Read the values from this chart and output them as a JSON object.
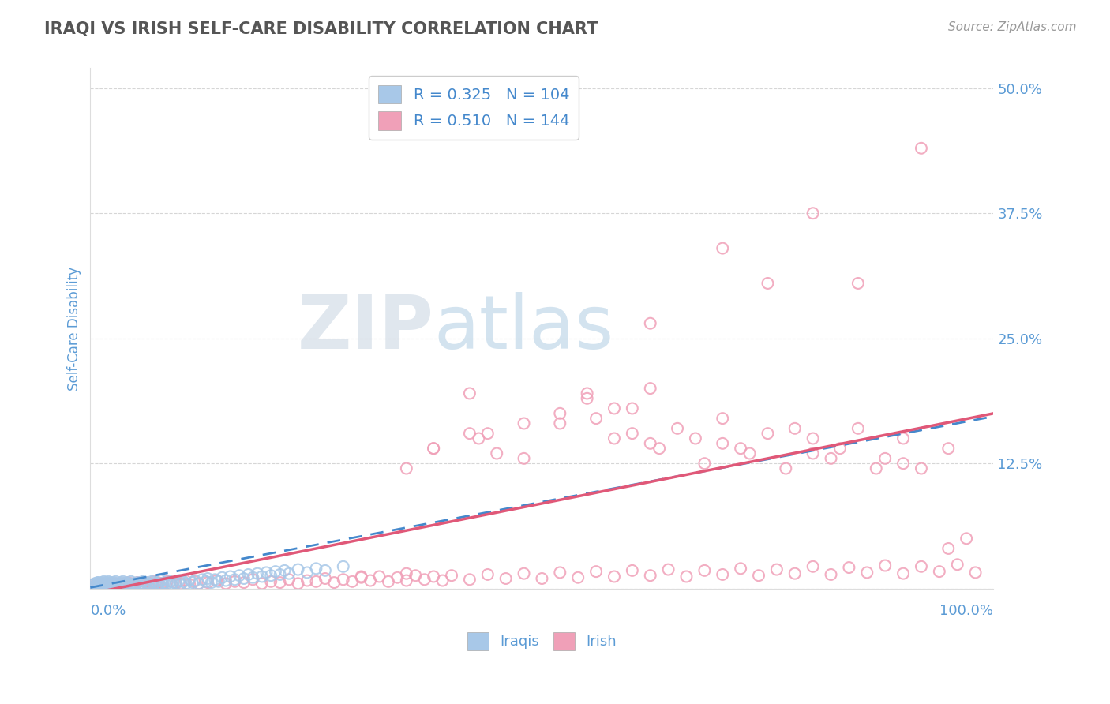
{
  "title": "IRAQI VS IRISH SELF-CARE DISABILITY CORRELATION CHART",
  "source": "Source: ZipAtlas.com",
  "ylabel": "Self-Care Disability",
  "yticks": [
    0.0,
    0.125,
    0.25,
    0.375,
    0.5
  ],
  "ytick_labels": [
    "",
    "12.5%",
    "25.0%",
    "37.5%",
    "50.0%"
  ],
  "xlim": [
    0.0,
    1.0
  ],
  "ylim": [
    0.0,
    0.52
  ],
  "iraqi_R": 0.325,
  "iraqi_N": 104,
  "irish_R": 0.51,
  "irish_N": 144,
  "iraqi_color": "#a8c8e8",
  "irish_color": "#f0a0b8",
  "iraqi_line_color": "#4488cc",
  "irish_line_color": "#e05878",
  "background_color": "#ffffff",
  "title_color": "#555555",
  "axis_label_color": "#5b9bd5",
  "grid_color": "#cccccc",
  "watermark_zip_color": "#c8d4e0",
  "watermark_atlas_color": "#a8c8e0",
  "legend_r_color": "#4488cc",
  "seed": 77,
  "iraqi_x_data": [
    0.005,
    0.006,
    0.007,
    0.008,
    0.01,
    0.01,
    0.012,
    0.013,
    0.013,
    0.014,
    0.015,
    0.015,
    0.016,
    0.017,
    0.018,
    0.018,
    0.019,
    0.02,
    0.02,
    0.021,
    0.022,
    0.022,
    0.023,
    0.024,
    0.025,
    0.026,
    0.027,
    0.028,
    0.028,
    0.03,
    0.032,
    0.033,
    0.034,
    0.035,
    0.036,
    0.038,
    0.04,
    0.04,
    0.042,
    0.044,
    0.045,
    0.046,
    0.048,
    0.05,
    0.052,
    0.054,
    0.056,
    0.058,
    0.06,
    0.062,
    0.064,
    0.066,
    0.068,
    0.07,
    0.072,
    0.074,
    0.076,
    0.078,
    0.08,
    0.082,
    0.085,
    0.088,
    0.09,
    0.092,
    0.095,
    0.098,
    0.1,
    0.103,
    0.106,
    0.11,
    0.113,
    0.116,
    0.12,
    0.124,
    0.128,
    0.13,
    0.134,
    0.138,
    0.142,
    0.146,
    0.15,
    0.155,
    0.16,
    0.165,
    0.17,
    0.175,
    0.18,
    0.185,
    0.19,
    0.195,
    0.2,
    0.205,
    0.21,
    0.215,
    0.22,
    0.23,
    0.24,
    0.25,
    0.26,
    0.28,
    0.003,
    0.004,
    0.009,
    0.011
  ],
  "iraqi_y_data": [
    0.005,
    0.003,
    0.004,
    0.006,
    0.003,
    0.005,
    0.004,
    0.006,
    0.003,
    0.005,
    0.004,
    0.007,
    0.005,
    0.003,
    0.006,
    0.004,
    0.005,
    0.003,
    0.007,
    0.005,
    0.004,
    0.006,
    0.003,
    0.005,
    0.004,
    0.006,
    0.003,
    0.005,
    0.007,
    0.004,
    0.005,
    0.003,
    0.006,
    0.004,
    0.007,
    0.005,
    0.003,
    0.006,
    0.004,
    0.005,
    0.007,
    0.003,
    0.005,
    0.004,
    0.006,
    0.003,
    0.005,
    0.007,
    0.004,
    0.006,
    0.003,
    0.005,
    0.007,
    0.004,
    0.006,
    0.003,
    0.005,
    0.008,
    0.004,
    0.006,
    0.005,
    0.007,
    0.004,
    0.006,
    0.005,
    0.008,
    0.004,
    0.007,
    0.005,
    0.009,
    0.006,
    0.008,
    0.005,
    0.009,
    0.007,
    0.01,
    0.006,
    0.009,
    0.007,
    0.011,
    0.008,
    0.012,
    0.009,
    0.013,
    0.01,
    0.014,
    0.011,
    0.015,
    0.012,
    0.016,
    0.013,
    0.017,
    0.014,
    0.018,
    0.015,
    0.019,
    0.016,
    0.02,
    0.018,
    0.022,
    0.004,
    0.002,
    0.006,
    0.003
  ],
  "irish_main_x": [
    0.005,
    0.008,
    0.01,
    0.012,
    0.015,
    0.018,
    0.02,
    0.022,
    0.025,
    0.028,
    0.03,
    0.032,
    0.035,
    0.038,
    0.04,
    0.042,
    0.045,
    0.048,
    0.05,
    0.052,
    0.055,
    0.058,
    0.06,
    0.062,
    0.065,
    0.068,
    0.07,
    0.072,
    0.075,
    0.08,
    0.085,
    0.09,
    0.095,
    0.1,
    0.105,
    0.11,
    0.115,
    0.12,
    0.13,
    0.14,
    0.15,
    0.16,
    0.17,
    0.18,
    0.19,
    0.2,
    0.21,
    0.22,
    0.23,
    0.24,
    0.25,
    0.26,
    0.27,
    0.28,
    0.29,
    0.3,
    0.31,
    0.32,
    0.33,
    0.34,
    0.35,
    0.36,
    0.37,
    0.38,
    0.39,
    0.4,
    0.42,
    0.44,
    0.46,
    0.48,
    0.5,
    0.52,
    0.54,
    0.56,
    0.58,
    0.6,
    0.62,
    0.64,
    0.66,
    0.68,
    0.7,
    0.72,
    0.74,
    0.76,
    0.78,
    0.8,
    0.82,
    0.84,
    0.86,
    0.88,
    0.9,
    0.92,
    0.94,
    0.96,
    0.98,
    0.3,
    0.35,
    0.003,
    0.006,
    0.009
  ],
  "irish_main_y": [
    0.003,
    0.004,
    0.003,
    0.005,
    0.003,
    0.004,
    0.005,
    0.003,
    0.004,
    0.005,
    0.003,
    0.004,
    0.005,
    0.003,
    0.004,
    0.006,
    0.003,
    0.005,
    0.004,
    0.006,
    0.003,
    0.005,
    0.004,
    0.006,
    0.003,
    0.005,
    0.007,
    0.004,
    0.006,
    0.005,
    0.007,
    0.004,
    0.006,
    0.005,
    0.008,
    0.004,
    0.007,
    0.005,
    0.006,
    0.008,
    0.005,
    0.007,
    0.006,
    0.009,
    0.005,
    0.007,
    0.006,
    0.009,
    0.005,
    0.008,
    0.007,
    0.01,
    0.006,
    0.009,
    0.007,
    0.011,
    0.008,
    0.012,
    0.007,
    0.011,
    0.008,
    0.013,
    0.009,
    0.012,
    0.008,
    0.013,
    0.009,
    0.014,
    0.01,
    0.015,
    0.01,
    0.016,
    0.011,
    0.017,
    0.012,
    0.018,
    0.013,
    0.019,
    0.012,
    0.018,
    0.014,
    0.02,
    0.013,
    0.019,
    0.015,
    0.022,
    0.014,
    0.021,
    0.016,
    0.023,
    0.015,
    0.022,
    0.017,
    0.024,
    0.016,
    0.012,
    0.015,
    0.004,
    0.003,
    0.005
  ],
  "irish_outlier_x": [
    0.42,
    0.52,
    0.55,
    0.6,
    0.65,
    0.67,
    0.7,
    0.72,
    0.75,
    0.78,
    0.8,
    0.83,
    0.85,
    0.88,
    0.9,
    0.92,
    0.95,
    0.97,
    0.38,
    0.44,
    0.48,
    0.56,
    0.62,
    0.95,
    0.35,
    0.45,
    0.58,
    0.63,
    0.68,
    0.73,
    0.77,
    0.82,
    0.87,
    0.62,
    0.58,
    0.48,
    0.43,
    0.38,
    0.42,
    0.52,
    0.6,
    0.7,
    0.8,
    0.9
  ],
  "irish_outlier_y": [
    0.195,
    0.175,
    0.19,
    0.18,
    0.16,
    0.15,
    0.17,
    0.14,
    0.155,
    0.16,
    0.15,
    0.14,
    0.16,
    0.13,
    0.15,
    0.12,
    0.14,
    0.05,
    0.14,
    0.155,
    0.13,
    0.17,
    0.145,
    0.04,
    0.12,
    0.135,
    0.15,
    0.14,
    0.125,
    0.135,
    0.12,
    0.13,
    0.12,
    0.2,
    0.18,
    0.165,
    0.15,
    0.14,
    0.155,
    0.165,
    0.155,
    0.145,
    0.135,
    0.125
  ],
  "irish_high_x": [
    0.55,
    0.62,
    0.7,
    0.75,
    0.8,
    0.85,
    0.92
  ],
  "irish_high_y": [
    0.195,
    0.265,
    0.34,
    0.305,
    0.375,
    0.305,
    0.44
  ],
  "iraqi_trendline": [
    0.001,
    0.172
  ],
  "irish_trendline": [
    -0.005,
    0.175
  ]
}
